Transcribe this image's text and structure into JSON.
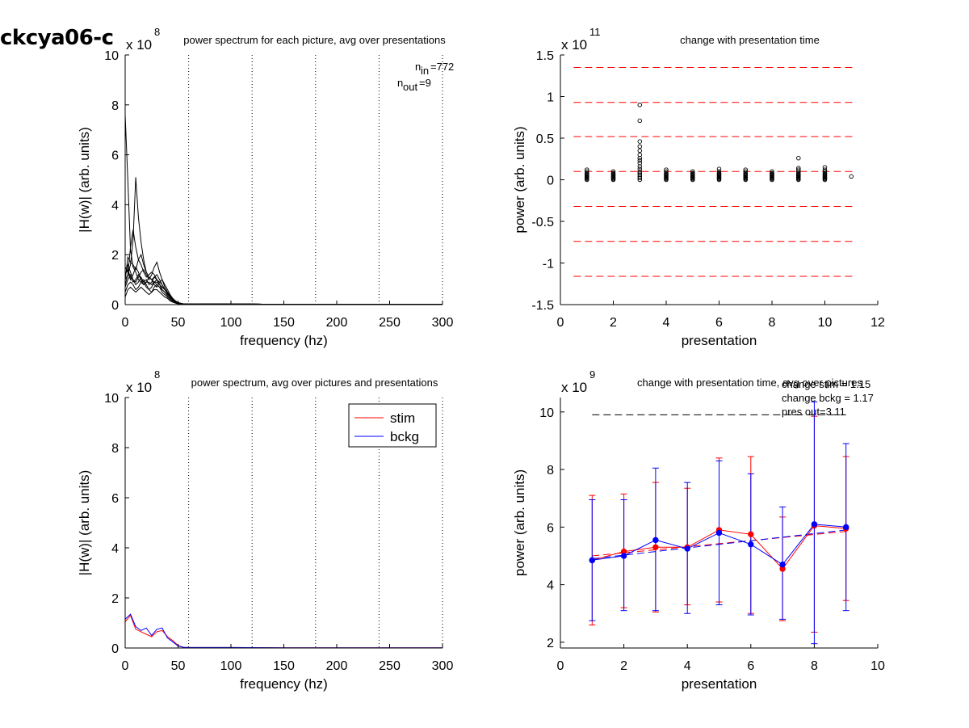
{
  "figure_title": "ckcya06-c",
  "chart_data": [
    {
      "id": "p1",
      "type": "line",
      "title": "power spectrum for each picture, avg over presentations",
      "xlabel": "frequency (hz)",
      "ylabel": "|H(w)| (arb. units)",
      "exponent": "x 10",
      "exponent_power": "8",
      "xlim": [
        0,
        300
      ],
      "ylim": [
        0,
        10
      ],
      "xticks": [
        0,
        50,
        100,
        150,
        200,
        250,
        300
      ],
      "yticks": [
        0,
        2,
        4,
        6,
        8,
        10
      ],
      "vlines": [
        60,
        120,
        180,
        240,
        300
      ],
      "n_in_label": "n",
      "n_in_sub": "in",
      "n_in_value": "=772",
      "n_out_label": "n",
      "n_out_sub": "out",
      "n_out_value": "=9",
      "x": [
        0,
        2.5,
        5,
        7.5,
        10,
        12.5,
        15,
        17.5,
        20,
        22.5,
        25,
        27.5,
        30,
        32.5,
        35,
        37.5,
        40,
        42.5,
        45,
        47.5,
        50,
        55,
        60,
        70,
        80,
        100,
        120,
        150,
        200,
        250,
        300
      ],
      "series": [
        {
          "values": [
            7.6,
            5.0,
            2.2,
            1.5,
            1.3,
            1.0,
            0.9,
            0.8,
            0.9,
            0.9,
            0.8,
            0.9,
            0.9,
            0.8,
            0.7,
            0.6,
            0.5,
            0.35,
            0.25,
            0.15,
            0.08,
            0.03,
            0.02,
            0.02,
            0.03,
            0.02,
            0.02,
            0.01,
            0.01,
            0.01,
            0.01
          ]
        },
        {
          "values": [
            1.0,
            1.2,
            1.6,
            2.6,
            5.1,
            3.5,
            2.5,
            1.8,
            1.3,
            1.1,
            1.0,
            1.1,
            1.2,
            1.0,
            0.8,
            0.6,
            0.5,
            0.35,
            0.25,
            0.15,
            0.08,
            0.03,
            0.02,
            0.02,
            0.03,
            0.02,
            0.02,
            0.01,
            0.01,
            0.01,
            0.01
          ]
        },
        {
          "values": [
            0.8,
            1.2,
            2.3,
            3.0,
            2.3,
            1.8,
            1.6,
            1.3,
            1.1,
            1.2,
            1.3,
            1.2,
            1.0,
            0.8,
            0.7,
            0.6,
            0.45,
            0.3,
            0.2,
            0.12,
            0.06,
            0.03,
            0.02,
            0.02,
            0.03,
            0.02,
            0.02,
            0.01,
            0.01,
            0.01,
            0.01
          ]
        },
        {
          "values": [
            1.0,
            1.9,
            1.7,
            1.6,
            1.4,
            1.8,
            2.0,
            1.6,
            1.3,
            1.1,
            1.0,
            0.9,
            0.8,
            0.7,
            0.6,
            0.5,
            0.4,
            0.3,
            0.2,
            0.12,
            0.06,
            0.03,
            0.02,
            0.02,
            0.03,
            0.02,
            0.02,
            0.01,
            0.01,
            0.01,
            0.01
          ]
        },
        {
          "values": [
            1.1,
            1.6,
            1.3,
            1.0,
            0.9,
            1.1,
            1.3,
            1.4,
            1.2,
            1.0,
            1.2,
            1.5,
            1.7,
            1.3,
            1.0,
            0.8,
            0.6,
            0.4,
            0.25,
            0.14,
            0.07,
            0.03,
            0.02,
            0.02,
            0.03,
            0.02,
            0.02,
            0.01,
            0.01,
            0.01,
            0.01
          ]
        },
        {
          "values": [
            0.7,
            1.0,
            1.2,
            1.0,
            0.8,
            0.9,
            1.1,
            0.9,
            0.7,
            0.6,
            0.7,
            0.9,
            1.0,
            0.8,
            0.6,
            0.5,
            0.35,
            0.25,
            0.15,
            0.09,
            0.05,
            0.02,
            0.02,
            0.02,
            0.03,
            0.02,
            0.02,
            0.01,
            0.01,
            0.01,
            0.01
          ]
        },
        {
          "values": [
            0.5,
            0.8,
            0.9,
            0.8,
            0.6,
            0.7,
            0.9,
            1.0,
            0.8,
            0.6,
            0.5,
            0.7,
            0.8,
            0.7,
            0.5,
            0.4,
            0.3,
            0.2,
            0.12,
            0.07,
            0.04,
            0.02,
            0.02,
            0.02,
            0.03,
            0.02,
            0.02,
            0.01,
            0.01,
            0.01,
            0.01
          ]
        },
        {
          "values": [
            1.2,
            1.4,
            1.1,
            0.9,
            1.0,
            1.2,
            1.0,
            0.8,
            0.9,
            1.1,
            1.0,
            0.8,
            0.7,
            0.9,
            0.8,
            0.6,
            0.45,
            0.3,
            0.2,
            0.11,
            0.05,
            0.03,
            0.02,
            0.02,
            0.03,
            0.02,
            0.02,
            0.01,
            0.01,
            0.01,
            0.01
          ]
        },
        {
          "values": [
            0.3,
            0.6,
            0.7,
            0.6,
            0.5,
            0.6,
            0.7,
            0.6,
            0.5,
            0.4,
            0.5,
            0.6,
            0.6,
            0.5,
            0.4,
            0.3,
            0.25,
            0.15,
            0.1,
            0.06,
            0.03,
            0.02,
            0.02,
            0.02,
            0.03,
            0.02,
            0.02,
            0.01,
            0.01,
            0.01,
            0.01
          ]
        },
        {
          "values": [
            1.5,
            1.3,
            1.0,
            1.2,
            1.5,
            1.3,
            1.0,
            0.9,
            1.0,
            0.8,
            0.9,
            1.1,
            1.0,
            0.9,
            1.0,
            0.7,
            0.5,
            0.35,
            0.22,
            0.12,
            0.06,
            0.03,
            0.02,
            0.02,
            0.03,
            0.02,
            0.02,
            0.01,
            0.01,
            0.01,
            0.01
          ]
        }
      ]
    },
    {
      "id": "p2",
      "type": "scatter",
      "title": "change with presentation time",
      "xlabel": "presentation",
      "ylabel": "power (arb. units)",
      "exponent": "x 10",
      "exponent_power": "11",
      "xlim": [
        0,
        12
      ],
      "ylim": [
        -1.5,
        1.5
      ],
      "xticks": [
        0,
        2,
        4,
        6,
        8,
        10,
        12
      ],
      "ytick_labels": [
        "-1.5",
        "-1",
        "-0.5",
        "0",
        "0.5",
        "1",
        "1.5"
      ],
      "yticks": [
        -1.5,
        -1,
        -0.5,
        0,
        0.5,
        1,
        1.5
      ],
      "hlines": [
        1.35,
        0.93,
        0.52,
        0.1,
        -0.32,
        -0.74,
        -1.16
      ],
      "points": [
        [
          1,
          0.0
        ],
        [
          1,
          0.01
        ],
        [
          1,
          0.02
        ],
        [
          1,
          0.03
        ],
        [
          1,
          0.04
        ],
        [
          1,
          0.05
        ],
        [
          1,
          0.06
        ],
        [
          1,
          0.07
        ],
        [
          1,
          0.08
        ],
        [
          1,
          0.1
        ],
        [
          1,
          0.12
        ],
        [
          2,
          0.0
        ],
        [
          2,
          0.01
        ],
        [
          2,
          0.02
        ],
        [
          2,
          0.03
        ],
        [
          2,
          0.04
        ],
        [
          2,
          0.05
        ],
        [
          2,
          0.06
        ],
        [
          2,
          0.07
        ],
        [
          2,
          0.08
        ],
        [
          2,
          0.1
        ],
        [
          3,
          0.0
        ],
        [
          3,
          0.02
        ],
        [
          3,
          0.04
        ],
        [
          3,
          0.06
        ],
        [
          3,
          0.08
        ],
        [
          3,
          0.1
        ],
        [
          3,
          0.13
        ],
        [
          3,
          0.16
        ],
        [
          3,
          0.2
        ],
        [
          3,
          0.23
        ],
        [
          3,
          0.26
        ],
        [
          3,
          0.3
        ],
        [
          3,
          0.35
        ],
        [
          3,
          0.4
        ],
        [
          3,
          0.46
        ],
        [
          3,
          0.71
        ],
        [
          3,
          0.9
        ],
        [
          4,
          0.0
        ],
        [
          4,
          0.01
        ],
        [
          4,
          0.02
        ],
        [
          4,
          0.03
        ],
        [
          4,
          0.04
        ],
        [
          4,
          0.05
        ],
        [
          4,
          0.06
        ],
        [
          4,
          0.07
        ],
        [
          4,
          0.08
        ],
        [
          4,
          0.1
        ],
        [
          4,
          0.12
        ],
        [
          5,
          0.0
        ],
        [
          5,
          0.01
        ],
        [
          5,
          0.02
        ],
        [
          5,
          0.03
        ],
        [
          5,
          0.04
        ],
        [
          5,
          0.05
        ],
        [
          5,
          0.06
        ],
        [
          5,
          0.07
        ],
        [
          5,
          0.08
        ],
        [
          5,
          0.1
        ],
        [
          6,
          0.0
        ],
        [
          6,
          0.01
        ],
        [
          6,
          0.02
        ],
        [
          6,
          0.03
        ],
        [
          6,
          0.04
        ],
        [
          6,
          0.05
        ],
        [
          6,
          0.06
        ],
        [
          6,
          0.07
        ],
        [
          6,
          0.08
        ],
        [
          6,
          0.1
        ],
        [
          6,
          0.13
        ],
        [
          7,
          0.0
        ],
        [
          7,
          0.01
        ],
        [
          7,
          0.02
        ],
        [
          7,
          0.03
        ],
        [
          7,
          0.04
        ],
        [
          7,
          0.05
        ],
        [
          7,
          0.06
        ],
        [
          7,
          0.07
        ],
        [
          7,
          0.08
        ],
        [
          7,
          0.1
        ],
        [
          7,
          0.12
        ],
        [
          8,
          0.0
        ],
        [
          8,
          0.01
        ],
        [
          8,
          0.02
        ],
        [
          8,
          0.03
        ],
        [
          8,
          0.04
        ],
        [
          8,
          0.05
        ],
        [
          8,
          0.06
        ],
        [
          8,
          0.07
        ],
        [
          8,
          0.08
        ],
        [
          8,
          0.1
        ],
        [
          9,
          0.0
        ],
        [
          9,
          0.01
        ],
        [
          9,
          0.02
        ],
        [
          9,
          0.03
        ],
        [
          9,
          0.04
        ],
        [
          9,
          0.05
        ],
        [
          9,
          0.06
        ],
        [
          9,
          0.07
        ],
        [
          9,
          0.08
        ],
        [
          9,
          0.1
        ],
        [
          9,
          0.12
        ],
        [
          9,
          0.14
        ],
        [
          9,
          0.26
        ],
        [
          10,
          0.0
        ],
        [
          10,
          0.01
        ],
        [
          10,
          0.02
        ],
        [
          10,
          0.03
        ],
        [
          10,
          0.04
        ],
        [
          10,
          0.05
        ],
        [
          10,
          0.06
        ],
        [
          10,
          0.07
        ],
        [
          10,
          0.08
        ],
        [
          10,
          0.1
        ],
        [
          10,
          0.12
        ],
        [
          10,
          0.15
        ],
        [
          11,
          0.04
        ]
      ]
    },
    {
      "id": "p3",
      "type": "line",
      "title": "power spectrum, avg over pictures and presentations",
      "xlabel": "frequency (hz)",
      "ylabel": "|H(w)| (arb. units)",
      "exponent": "x 10",
      "exponent_power": "8",
      "xlim": [
        0,
        300
      ],
      "ylim": [
        0,
        10
      ],
      "xticks": [
        0,
        50,
        100,
        150,
        200,
        250,
        300
      ],
      "yticks": [
        0,
        2,
        4,
        6,
        8,
        10
      ],
      "vlines": [
        60,
        120,
        180,
        240,
        300
      ],
      "legend": [
        {
          "name": "stim",
          "color": "#ff0000"
        },
        {
          "name": "bckg",
          "color": "#0000ff"
        }
      ],
      "x": [
        0,
        5,
        10,
        15,
        20,
        25,
        30,
        35,
        40,
        45,
        50,
        55,
        60,
        100,
        150,
        200,
        250,
        300
      ],
      "series": [
        {
          "name": "stim",
          "color": "#ff0000",
          "values": [
            1.05,
            1.3,
            0.75,
            0.65,
            0.55,
            0.45,
            0.65,
            0.7,
            0.45,
            0.3,
            0.1,
            0.03,
            0.02,
            0.02,
            0.01,
            0.01,
            0.01,
            0.01
          ]
        },
        {
          "name": "bckg",
          "color": "#0000ff",
          "values": [
            1.15,
            1.35,
            0.85,
            0.7,
            0.8,
            0.5,
            0.75,
            0.8,
            0.4,
            0.25,
            0.08,
            0.03,
            0.02,
            0.02,
            0.01,
            0.01,
            0.01,
            0.01
          ]
        }
      ]
    },
    {
      "id": "p4",
      "type": "line",
      "title": "change with presentation time, avg over pictures",
      "xlabel": "presentation",
      "ylabel": "power (arb. units)",
      "exponent": "x 10",
      "exponent_power": "9",
      "xlim": [
        0,
        10
      ],
      "ylim": [
        1.8,
        10.5
      ],
      "xticks": [
        0,
        2,
        4,
        6,
        8,
        10
      ],
      "yticks": [
        2,
        4,
        6,
        8,
        10
      ],
      "annotations": [
        "change stim = 1.15",
        "change bckg = 1.17",
        "pres out=3 11"
      ],
      "hline": 9.9,
      "x": [
        1,
        2,
        3,
        4,
        5,
        6,
        7,
        8,
        9
      ],
      "series": [
        {
          "name": "stim",
          "color": "#ff0000",
          "values": [
            4.85,
            5.15,
            5.3,
            5.3,
            5.9,
            5.75,
            4.55,
            6.05,
            5.95
          ],
          "err_lo": [
            2.6,
            3.2,
            3.05,
            3.3,
            3.4,
            3.0,
            2.75,
            2.35,
            3.45
          ],
          "err_hi": [
            7.1,
            7.15,
            7.55,
            7.35,
            8.4,
            8.45,
            6.35,
            9.85,
            8.45
          ]
        },
        {
          "name": "bckg",
          "color": "#0000ff",
          "values": [
            4.85,
            5.0,
            5.55,
            5.25,
            5.8,
            5.4,
            4.7,
            6.1,
            6.0
          ],
          "err_lo": [
            2.75,
            3.1,
            3.1,
            3.0,
            3.3,
            2.95,
            2.8,
            1.95,
            3.1
          ],
          "err_hi": [
            6.95,
            6.95,
            8.05,
            7.55,
            8.3,
            7.85,
            6.7,
            10.35,
            8.9
          ]
        }
      ],
      "trend": [
        {
          "color": "#ff0000",
          "x": [
            1,
            9
          ],
          "values": [
            5.0,
            5.85
          ]
        },
        {
          "color": "#0000ff",
          "x": [
            1,
            9
          ],
          "values": [
            4.9,
            5.9
          ]
        }
      ]
    }
  ]
}
